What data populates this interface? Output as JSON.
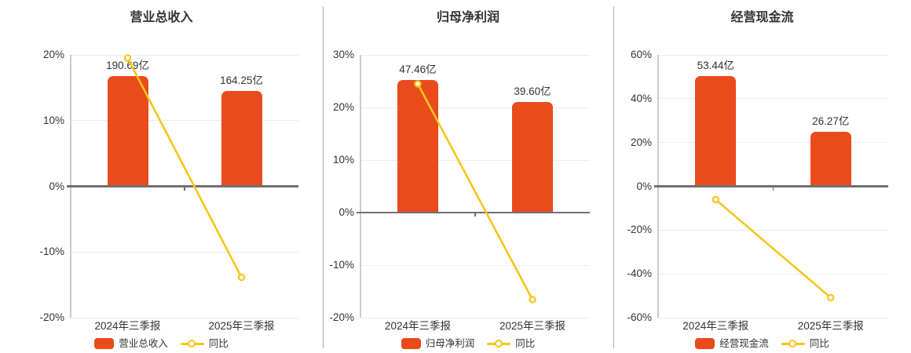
{
  "page": {
    "background": "#ffffff",
    "description": "三季报财务指标对比图"
  },
  "colors": {
    "bar": "#e94b1d",
    "line": "#f6c51a",
    "marker_fill": "#ffffff",
    "grid": "#e8ecf4",
    "zero_axis": "#6f6f75",
    "y_axis": "#c9c9cf",
    "divider": "#ababab",
    "text": "#333333"
  },
  "chart_data": [
    {
      "type": "bar",
      "title": "营业总收入",
      "categories": [
        "2024年三季报",
        "2025年三季报"
      ],
      "series": [
        {
          "name": "营业总收入",
          "type": "bar",
          "unit": "亿",
          "values": [
            190.69,
            164.25
          ],
          "labels": [
            "190.69亿",
            "164.25亿"
          ]
        },
        {
          "name": "同比",
          "type": "line",
          "unit": "%",
          "values": [
            19.53,
            -13.86
          ]
        }
      ],
      "y_ticks": [
        {
          "label": "20%",
          "value": 20
        },
        {
          "label": "10%",
          "value": 10
        },
        {
          "label": "0%",
          "value": 0
        },
        {
          "label": "-10%",
          "value": -10
        },
        {
          "label": "-20%",
          "value": -20
        }
      ],
      "ylim": [
        -20,
        20
      ],
      "grid": true,
      "legend": [
        "营业总收入",
        "同比"
      ],
      "legend_position": "bottom"
    },
    {
      "type": "bar",
      "title": "归母净利润",
      "categories": [
        "2024年三季报",
        "2025年三季报"
      ],
      "series": [
        {
          "name": "归母净利润",
          "type": "bar",
          "unit": "亿",
          "values": [
            47.46,
            39.6
          ],
          "labels": [
            "47.46亿",
            "39.60亿"
          ]
        },
        {
          "name": "同比",
          "type": "line",
          "unit": "%",
          "values": [
            24.49,
            -16.56
          ]
        }
      ],
      "y_ticks": [
        {
          "label": "30%",
          "value": 30
        },
        {
          "label": "20%",
          "value": 20
        },
        {
          "label": "10%",
          "value": 10
        },
        {
          "label": "0%",
          "value": 0
        },
        {
          "label": "-10%",
          "value": -10
        },
        {
          "label": "-20%",
          "value": -20
        }
      ],
      "ylim": [
        -20,
        30
      ],
      "grid": true,
      "legend": [
        "归母净利润",
        "同比"
      ],
      "legend_position": "bottom"
    },
    {
      "type": "bar",
      "title": "经营现金流",
      "categories": [
        "2024年三季报",
        "2025年三季报"
      ],
      "series": [
        {
          "name": "经营现金流",
          "type": "bar",
          "unit": "亿",
          "values": [
            53.44,
            26.27
          ],
          "labels": [
            "53.44亿",
            "26.27亿"
          ]
        },
        {
          "name": "同比",
          "type": "line",
          "unit": "%",
          "values": [
            -6.07,
            -50.84
          ]
        }
      ],
      "y_ticks": [
        {
          "label": "60%",
          "value": 60
        },
        {
          "label": "40%",
          "value": 40
        },
        {
          "label": "20%",
          "value": 20
        },
        {
          "label": "0%",
          "value": 0
        },
        {
          "label": "-20%",
          "value": -20
        },
        {
          "label": "-40%",
          "value": -40
        },
        {
          "label": "-60%",
          "value": -60
        }
      ],
      "ylim": [
        -60,
        60
      ],
      "grid": true,
      "legend": [
        "经营现金流",
        "同比"
      ],
      "legend_position": "bottom"
    }
  ]
}
